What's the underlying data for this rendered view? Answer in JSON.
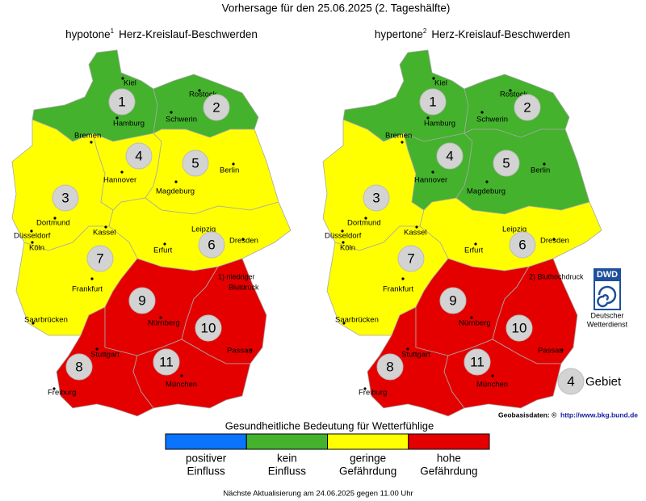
{
  "title": "Vorhersage für den 25.06.2025 (2. Tageshälfte)",
  "cities": [
    "Kiel",
    "Rostock",
    "Hamburg",
    "Schwerin",
    "Bremen",
    "Hannover",
    "Berlin",
    "Magdeburg",
    "Dortmund",
    "Düsseldorf",
    "Köln",
    "Kassel",
    "Leipzig",
    "Dresden",
    "Erfurt",
    "Frankfurt",
    "Saarbrücken",
    "Nürnberg",
    "Passau",
    "Stuttgart",
    "München",
    "Freiburg"
  ],
  "maps": [
    {
      "title_prefix": "hypotone",
      "footnote_mark": "1",
      "title_suffix": "Herz-Kreislauf-Beschwerden",
      "note": [
        "1) niedriger",
        "Blutdruck"
      ],
      "regions": [
        {
          "number": "1",
          "color": "#44b22c"
        },
        {
          "number": "2",
          "color": "#44b22c"
        },
        {
          "number": "3",
          "color": "#ffff00"
        },
        {
          "number": "4",
          "color": "#ffff00"
        },
        {
          "number": "5",
          "color": "#ffff00"
        },
        {
          "number": "6",
          "color": "#ffff00"
        },
        {
          "number": "7",
          "color": "#ffff00"
        },
        {
          "number": "8",
          "color": "#e50000"
        },
        {
          "number": "9",
          "color": "#e50000"
        },
        {
          "number": "10",
          "color": "#e50000"
        },
        {
          "number": "11",
          "color": "#e50000"
        }
      ]
    },
    {
      "title_prefix": "hypertone",
      "footnote_mark": "2",
      "title_suffix": "Herz-Kreislauf-Beschwerden",
      "note": [
        "2) Bluthochdruck"
      ],
      "regions": [
        {
          "number": "1",
          "color": "#44b22c"
        },
        {
          "number": "2",
          "color": "#44b22c"
        },
        {
          "number": "3",
          "color": "#ffff00"
        },
        {
          "number": "4",
          "color": "#44b22c"
        },
        {
          "number": "5",
          "color": "#44b22c"
        },
        {
          "number": "6",
          "color": "#ffff00"
        },
        {
          "number": "7",
          "color": "#ffff00"
        },
        {
          "number": "8",
          "color": "#e50000"
        },
        {
          "number": "9",
          "color": "#e50000"
        },
        {
          "number": "10",
          "color": "#e50000"
        },
        {
          "number": "11",
          "color": "#e50000"
        }
      ]
    }
  ],
  "logo": {
    "abbr": "DWD",
    "lines": [
      "Deutscher",
      "Wetterdienst"
    ]
  },
  "area_key": {
    "number": "4",
    "label": "Gebiet"
  },
  "credit": {
    "text": "Geobasisdaten: ©",
    "link": "http://www.bkg.bund.de"
  },
  "legend": {
    "title": "Gesundheitliche Bedeutung für Wetterfühlige",
    "items": [
      {
        "color": "#0a74ff",
        "lines": [
          "positiver",
          "Einfluss"
        ]
      },
      {
        "color": "#44b22c",
        "lines": [
          "kein",
          "Einfluss"
        ]
      },
      {
        "color": "#ffff00",
        "lines": [
          "geringe",
          "Gefährdung"
        ]
      },
      {
        "color": "#e50000",
        "lines": [
          "hohe",
          "Gefährdung"
        ]
      }
    ]
  },
  "footer": "Nächste Aktualisierung am 24.06.2025 gegen 11.00 Uhr"
}
